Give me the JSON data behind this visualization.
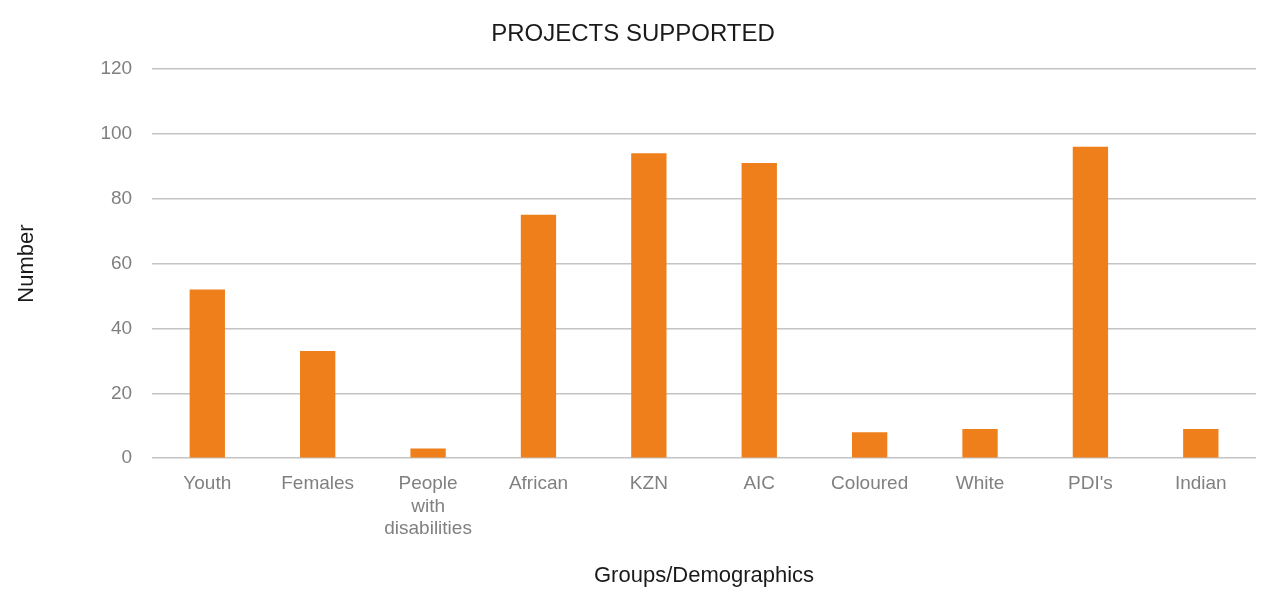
{
  "chart_data": {
    "type": "bar",
    "title": "PROJECTS SUPPORTED",
    "xlabel": "Groups/Demographics",
    "ylabel": "Number",
    "categories": [
      "Youth",
      "Females",
      "People with disabilities",
      "African",
      "KZN",
      "AIC",
      "Coloured",
      "White",
      "PDI's",
      "Indian"
    ],
    "values": [
      52,
      33,
      3,
      75,
      94,
      91,
      8,
      9,
      96,
      9
    ],
    "color": "#ee7f1a",
    "ylim": [
      0,
      120
    ],
    "yticks": [
      0,
      20,
      40,
      60,
      80,
      100,
      120
    ],
    "grid": "y",
    "legend": false
  }
}
